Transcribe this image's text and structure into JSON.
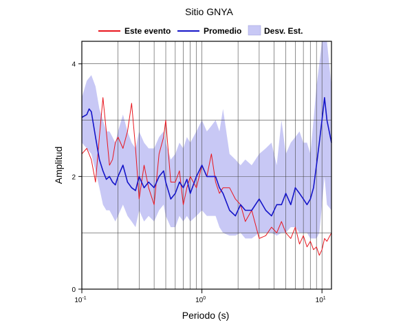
{
  "chart_data": {
    "type": "line",
    "title": "Sitio GNYA",
    "xlabel": "Periodo (s)",
    "ylabel": "Amplitud",
    "xscale": "log",
    "xlim": [
      0.1,
      12
    ],
    "ylim": [
      0,
      4.4
    ],
    "grid": true,
    "legend_position": "top",
    "x_ticks": [
      0.1,
      1,
      10
    ],
    "x_tick_labels": [
      {
        "base": "10",
        "exp": "-1"
      },
      {
        "base": "10",
        "exp": "0"
      },
      {
        "base": "10",
        "exp": "1"
      }
    ],
    "y_ticks": [
      0,
      2,
      4
    ],
    "y_tick_labels": [
      "0",
      "2",
      "4"
    ],
    "series": [
      {
        "name": "Este evento",
        "color": "#e8141c",
        "x": [
          0.1,
          0.11,
          0.12,
          0.13,
          0.14,
          0.15,
          0.16,
          0.17,
          0.18,
          0.19,
          0.2,
          0.22,
          0.24,
          0.26,
          0.28,
          0.3,
          0.33,
          0.36,
          0.4,
          0.44,
          0.48,
          0.5,
          0.55,
          0.6,
          0.65,
          0.7,
          0.75,
          0.8,
          0.9,
          1.0,
          1.1,
          1.2,
          1.3,
          1.4,
          1.5,
          1.7,
          1.9,
          2.1,
          2.3,
          2.6,
          3.0,
          3.4,
          3.8,
          4.2,
          4.6,
          5.0,
          5.5,
          6.0,
          6.5,
          7.0,
          7.5,
          8.0,
          8.5,
          9.0,
          9.5,
          10.0,
          10.5,
          11.0,
          12.0
        ],
        "y": [
          2.4,
          2.5,
          2.3,
          1.9,
          2.7,
          3.4,
          2.8,
          2.2,
          2.3,
          2.6,
          2.7,
          2.5,
          2.8,
          3.3,
          2.5,
          1.6,
          2.2,
          1.8,
          1.5,
          2.4,
          2.7,
          3.0,
          1.9,
          1.9,
          2.1,
          1.5,
          1.8,
          2.0,
          1.8,
          2.2,
          2.0,
          2.4,
          1.9,
          1.7,
          1.8,
          1.8,
          1.6,
          1.5,
          1.2,
          1.4,
          0.9,
          0.95,
          1.1,
          1.0,
          1.2,
          1.0,
          0.9,
          1.1,
          0.8,
          0.95,
          0.75,
          0.85,
          0.7,
          0.75,
          0.6,
          0.7,
          0.9,
          0.85,
          1.0
        ]
      },
      {
        "name": "Promedio",
        "color": "#1414c8",
        "x": [
          0.1,
          0.11,
          0.115,
          0.12,
          0.13,
          0.14,
          0.15,
          0.16,
          0.17,
          0.18,
          0.19,
          0.2,
          0.22,
          0.24,
          0.26,
          0.28,
          0.3,
          0.33,
          0.36,
          0.4,
          0.44,
          0.48,
          0.5,
          0.55,
          0.6,
          0.65,
          0.7,
          0.75,
          0.8,
          0.9,
          1.0,
          1.1,
          1.2,
          1.3,
          1.4,
          1.5,
          1.7,
          1.9,
          2.1,
          2.3,
          2.6,
          3.0,
          3.4,
          3.8,
          4.2,
          4.6,
          5.0,
          5.5,
          6.0,
          6.5,
          7.0,
          7.5,
          8.0,
          8.5,
          9.0,
          9.5,
          10.0,
          10.5,
          11.0,
          12.0
        ],
        "y": [
          3.05,
          3.1,
          3.2,
          3.15,
          2.7,
          2.3,
          2.1,
          1.95,
          2.0,
          1.9,
          1.85,
          2.0,
          2.2,
          1.9,
          1.8,
          1.75,
          2.0,
          1.8,
          1.9,
          1.8,
          2.0,
          2.1,
          1.9,
          1.6,
          1.7,
          1.9,
          1.8,
          1.95,
          1.7,
          2.0,
          2.2,
          2.0,
          2.0,
          2.0,
          1.8,
          1.7,
          1.4,
          1.3,
          1.5,
          1.4,
          1.4,
          1.6,
          1.4,
          1.3,
          1.5,
          1.5,
          1.7,
          1.5,
          1.8,
          1.7,
          1.6,
          1.5,
          1.6,
          1.8,
          2.2,
          2.6,
          3.0,
          3.4,
          3.0,
          2.6
        ]
      },
      {
        "name": "Desv. Est.",
        "color": "#c8c8f5",
        "x": [
          0.1,
          0.11,
          0.12,
          0.13,
          0.14,
          0.15,
          0.16,
          0.17,
          0.18,
          0.19,
          0.2,
          0.22,
          0.24,
          0.26,
          0.28,
          0.3,
          0.33,
          0.36,
          0.4,
          0.44,
          0.48,
          0.5,
          0.55,
          0.6,
          0.65,
          0.7,
          0.75,
          0.8,
          0.9,
          1.0,
          1.1,
          1.2,
          1.3,
          1.4,
          1.5,
          1.7,
          1.9,
          2.1,
          2.3,
          2.6,
          3.0,
          3.4,
          3.8,
          4.2,
          4.6,
          5.0,
          5.5,
          6.0,
          6.5,
          7.0,
          7.5,
          8.0,
          8.5,
          9.0,
          9.5,
          10.0,
          10.5,
          11.0,
          12.0
        ],
        "upper": [
          3.4,
          3.7,
          3.8,
          3.6,
          3.2,
          3.0,
          2.8,
          2.8,
          2.7,
          2.6,
          2.8,
          3.1,
          2.8,
          2.6,
          2.5,
          2.8,
          2.6,
          2.5,
          2.5,
          2.7,
          2.8,
          2.6,
          2.3,
          2.4,
          2.6,
          2.5,
          2.7,
          2.6,
          2.8,
          3.0,
          2.8,
          2.9,
          3.0,
          2.8,
          3.2,
          2.4,
          2.3,
          2.2,
          2.3,
          2.2,
          2.4,
          2.5,
          2.6,
          2.2,
          3.0,
          2.4,
          2.6,
          2.7,
          2.8,
          2.6,
          2.6,
          2.4,
          3.0,
          3.6,
          4.0,
          4.4,
          4.4,
          4.4,
          3.6
        ],
        "lower": [
          2.6,
          2.5,
          2.4,
          2.1,
          1.8,
          1.5,
          1.4,
          1.4,
          1.3,
          1.2,
          1.3,
          1.5,
          1.3,
          1.2,
          1.1,
          1.4,
          1.2,
          1.3,
          1.2,
          1.4,
          1.5,
          1.3,
          1.1,
          1.1,
          1.3,
          1.2,
          1.3,
          1.2,
          1.3,
          1.4,
          1.3,
          1.3,
          1.3,
          1.1,
          1.0,
          0.95,
          0.95,
          1.0,
          0.9,
          0.9,
          1.0,
          1.0,
          1.0,
          0.95,
          1.0,
          1.0,
          1.1,
          1.1,
          1.0,
          1.0,
          1.0,
          0.9,
          0.9,
          0.9,
          1.0,
          1.5,
          2.0,
          1.5,
          1.4
        ]
      }
    ]
  }
}
